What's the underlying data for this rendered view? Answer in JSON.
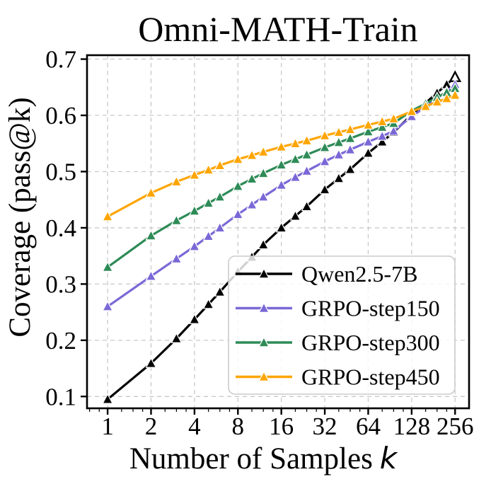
{
  "title": "Omni-MATH-Train",
  "chart_data": {
    "type": "line",
    "title": "Omni-MATH-Train",
    "xlabel_main": "Number of Samples",
    "xlabel_var": "k",
    "ylabel": "Coverage (pass@k)",
    "x_scale": "log2",
    "grid": true,
    "legend_position": "lower right",
    "x_ticks": [
      1,
      2,
      4,
      8,
      16,
      32,
      64,
      128,
      256
    ],
    "y_ticks": [
      0.1,
      0.2,
      0.3,
      0.4,
      0.5,
      0.6,
      0.7
    ],
    "xlim": [
      0.72,
      320
    ],
    "ylim": [
      0.079,
      0.707
    ],
    "x": [
      1,
      2,
      3,
      4,
      5,
      6,
      8,
      10,
      12,
      16,
      20,
      24,
      32,
      40,
      48,
      64,
      80,
      96,
      128,
      160,
      192,
      224,
      256
    ],
    "series": [
      {
        "name": "Qwen2.5-7B",
        "color": "#000000",
        "last_marker_hollow": true,
        "values": [
          0.095,
          0.159,
          0.203,
          0.237,
          0.264,
          0.286,
          0.322,
          0.348,
          0.37,
          0.4,
          0.421,
          0.438,
          0.468,
          0.488,
          0.504,
          0.533,
          0.553,
          0.57,
          0.601,
          0.622,
          0.64,
          0.655,
          0.668
        ]
      },
      {
        "name": "GRPO-step150",
        "color": "#7B68D6",
        "last_marker_hollow": false,
        "values": [
          0.26,
          0.314,
          0.345,
          0.367,
          0.385,
          0.4,
          0.424,
          0.441,
          0.455,
          0.476,
          0.49,
          0.501,
          0.518,
          0.53,
          0.539,
          0.553,
          0.563,
          0.572,
          0.598,
          0.615,
          0.63,
          0.643,
          0.655
        ]
      },
      {
        "name": "GRPO-step300",
        "color": "#2E8B57",
        "last_marker_hollow": false,
        "values": [
          0.33,
          0.386,
          0.413,
          0.43,
          0.444,
          0.455,
          0.474,
          0.487,
          0.497,
          0.512,
          0.522,
          0.53,
          0.543,
          0.552,
          0.559,
          0.571,
          0.579,
          0.586,
          0.608,
          0.621,
          0.632,
          0.641,
          0.648
        ]
      },
      {
        "name": "GRPO-step450",
        "color": "#FFA500",
        "last_marker_hollow": false,
        "values": [
          0.42,
          0.462,
          0.482,
          0.494,
          0.503,
          0.511,
          0.522,
          0.529,
          0.535,
          0.544,
          0.55,
          0.555,
          0.564,
          0.57,
          0.575,
          0.583,
          0.589,
          0.594,
          0.607,
          0.616,
          0.624,
          0.63,
          0.636
        ]
      }
    ],
    "grid_color": "#c9c9c9",
    "spine_color": "#000000",
    "legend_border_color": "#cccccc"
  }
}
